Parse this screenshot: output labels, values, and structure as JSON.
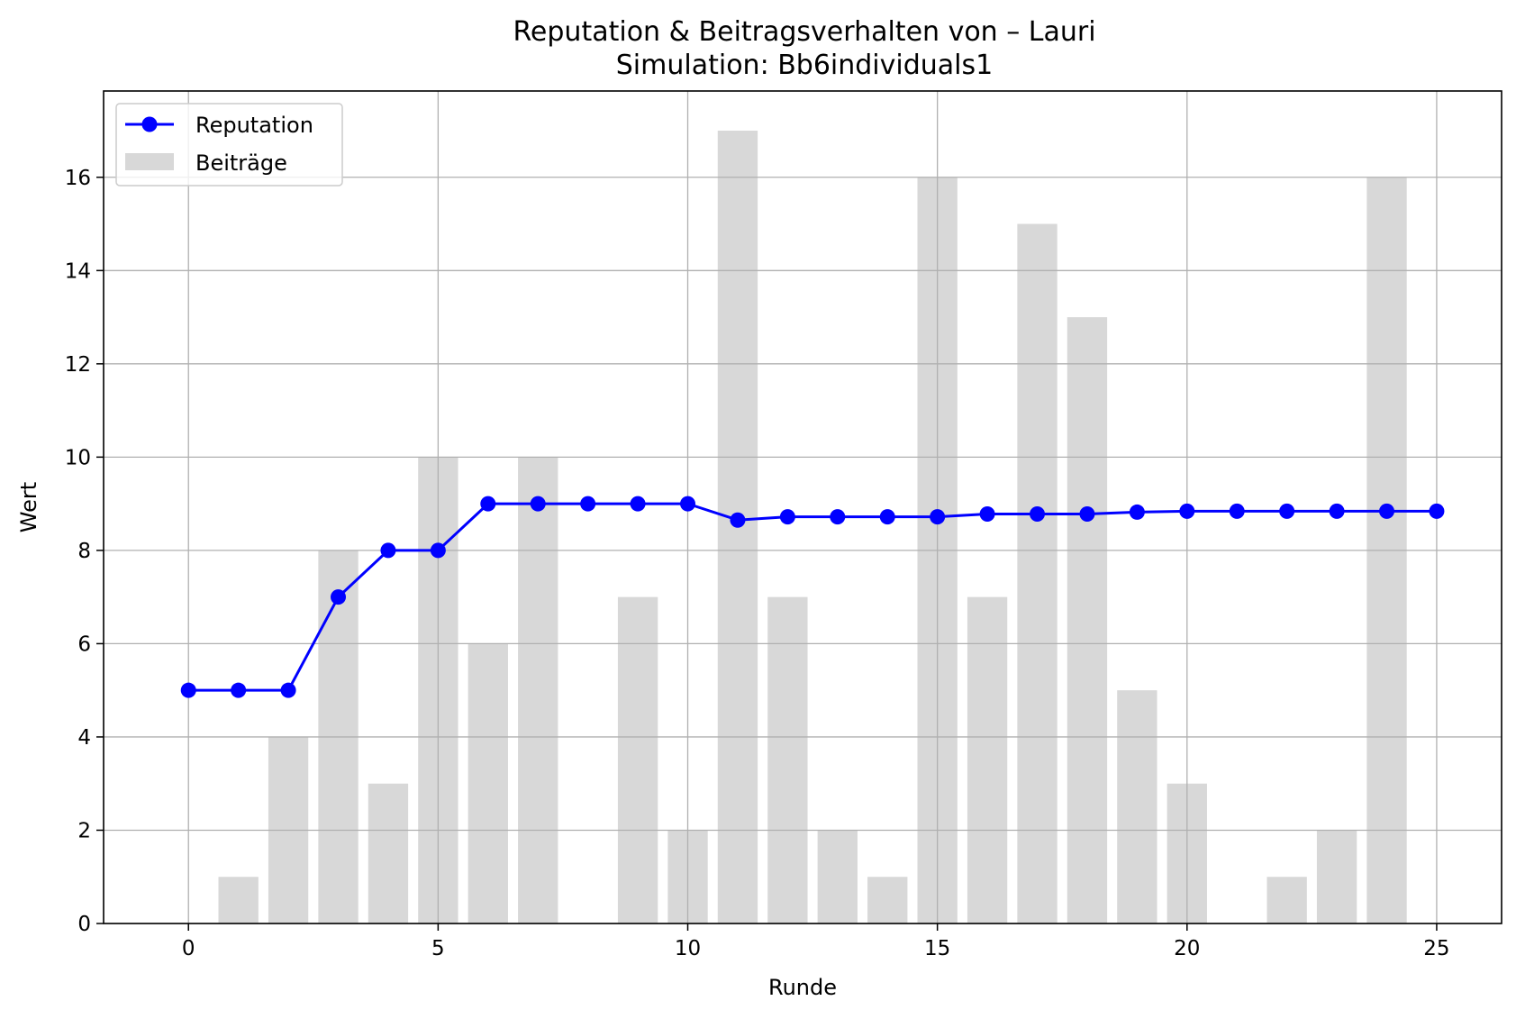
{
  "chart_data": {
    "type": "bar+line",
    "title": "Reputation & Beitragsverhalten von – Lauri",
    "subtitle": "Simulation: Bb6individuals1",
    "xlabel": "Runde",
    "ylabel": "Wert",
    "xlim": [
      -1.7,
      26.3
    ],
    "ylim": [
      0,
      17.85
    ],
    "xticks": [
      0,
      5,
      10,
      15,
      20,
      25
    ],
    "yticks": [
      0,
      2,
      4,
      6,
      8,
      10,
      12,
      14,
      16
    ],
    "grid": true,
    "legend_position": "top-left",
    "x": [
      0,
      1,
      2,
      3,
      4,
      5,
      6,
      7,
      8,
      9,
      10,
      11,
      12,
      13,
      14,
      15,
      16,
      17,
      18,
      19,
      20,
      21,
      22,
      23,
      24,
      25
    ],
    "series": [
      {
        "name": "Reputation",
        "kind": "line",
        "color": "#0000ff",
        "marker": "circle",
        "values": [
          5,
          5,
          5,
          7,
          8,
          8,
          9,
          9,
          9,
          9,
          9,
          8.65,
          8.72,
          8.72,
          8.72,
          8.72,
          8.78,
          8.78,
          8.78,
          8.82,
          8.84,
          8.84,
          8.84,
          8.84,
          8.84,
          8.84
        ]
      },
      {
        "name": "Beiträge",
        "kind": "bar",
        "color": "#d8d8d8",
        "values": [
          0,
          1,
          4,
          8,
          3,
          10,
          6,
          10,
          0,
          7,
          2,
          17,
          7,
          2,
          1,
          16,
          7,
          15,
          13,
          5,
          3,
          0,
          1,
          2,
          16,
          null
        ]
      }
    ]
  }
}
